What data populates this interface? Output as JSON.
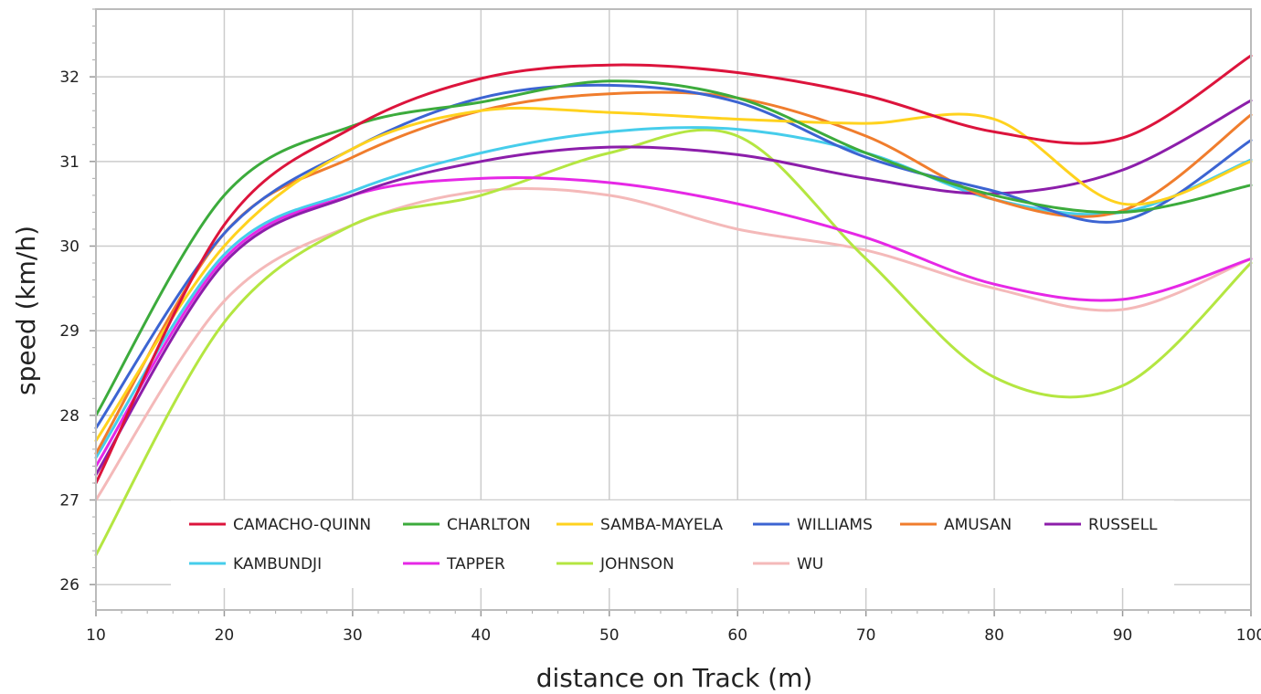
{
  "chart_data": {
    "type": "line",
    "title": "",
    "xlabel": "distance on Track (m)",
    "ylabel": "speed (km/h)",
    "xlim": [
      10,
      100
    ],
    "ylim": [
      25.7,
      32.8
    ],
    "x_ticks": [
      10,
      20,
      30,
      40,
      50,
      60,
      70,
      80,
      90,
      100
    ],
    "y_ticks": [
      26,
      27,
      28,
      29,
      30,
      31,
      32
    ],
    "grid": true,
    "legend_position": "bottom-inside",
    "x": [
      10,
      20,
      30,
      40,
      50,
      60,
      70,
      80,
      90,
      100
    ],
    "series": [
      {
        "name": "CAMACHO-QUINN",
        "color": "#dc143c",
        "values": [
          27.2,
          30.25,
          31.4,
          31.98,
          32.14,
          32.05,
          31.78,
          31.35,
          31.28,
          32.25
        ]
      },
      {
        "name": "CHARLTON",
        "color": "#3cab3c",
        "values": [
          28.0,
          30.6,
          31.42,
          31.7,
          31.95,
          31.75,
          31.1,
          30.6,
          30.4,
          30.72
        ]
      },
      {
        "name": "SAMBA-MAYELA",
        "color": "#ffd21e",
        "values": [
          27.7,
          30.0,
          31.15,
          31.6,
          31.58,
          31.5,
          31.45,
          31.5,
          30.5,
          31.0
        ]
      },
      {
        "name": "WILLIAMS",
        "color": "#3c64d2",
        "values": [
          27.85,
          30.15,
          31.15,
          31.75,
          31.9,
          31.7,
          31.05,
          30.65,
          30.3,
          31.25
        ]
      },
      {
        "name": "AMUSAN",
        "color": "#f07d2d",
        "values": [
          27.55,
          30.15,
          31.05,
          31.6,
          31.8,
          31.75,
          31.3,
          30.55,
          30.42,
          31.55
        ]
      },
      {
        "name": "RUSSELL",
        "color": "#8c1eaa",
        "values": [
          27.3,
          29.8,
          30.6,
          31.0,
          31.17,
          31.08,
          30.8,
          30.62,
          30.9,
          31.72
        ]
      },
      {
        "name": "KAMBUNDJI",
        "color": "#46cdeb",
        "values": [
          27.5,
          29.9,
          30.65,
          31.1,
          31.35,
          31.38,
          31.1,
          30.55,
          30.4,
          31.02
        ]
      },
      {
        "name": "TAPPER",
        "color": "#e628e6",
        "values": [
          27.4,
          29.85,
          30.6,
          30.8,
          30.75,
          30.5,
          30.1,
          29.55,
          29.37,
          29.85
        ]
      },
      {
        "name": "JOHNSON",
        "color": "#b4e641",
        "values": [
          26.35,
          29.1,
          30.25,
          30.6,
          31.1,
          31.3,
          29.85,
          28.45,
          28.35,
          29.8
        ]
      },
      {
        "name": "WU",
        "color": "#f4b9b9",
        "values": [
          27.0,
          29.35,
          30.25,
          30.65,
          30.6,
          30.2,
          29.95,
          29.5,
          29.25,
          29.85
        ]
      }
    ]
  }
}
